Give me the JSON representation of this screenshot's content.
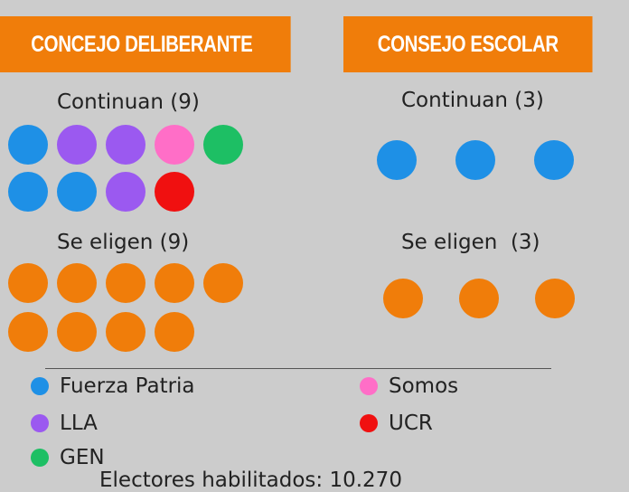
{
  "colors": {
    "orange": "#f07d0a",
    "fuerza_patria": "#1e90e6",
    "lla": "#9b59f0",
    "somos": "#ff6ec7",
    "gen": "#1dbf64",
    "ucr": "#f01010"
  },
  "concejo": {
    "title": "CONCEJO DELIBERANTE",
    "continuan_label": "Continuan (9)",
    "continuan_dots": [
      "fuerza_patria",
      "lla",
      "lla",
      "somos",
      "gen",
      "fuerza_patria",
      "fuerza_patria",
      "lla",
      "ucr"
    ],
    "eligen_label": "Se eligen (9)",
    "eligen_count": 9
  },
  "consejo": {
    "title": "CONSEJO ESCOLAR",
    "continuan_label": "Continuan (3)",
    "continuan_dots": [
      "fuerza_patria",
      "fuerza_patria",
      "fuerza_patria"
    ],
    "eligen_label": "Se eligen  (3)",
    "eligen_count": 3
  },
  "legend": [
    {
      "key": "fuerza_patria",
      "label": "Fuerza Patria"
    },
    {
      "key": "somos",
      "label": "Somos"
    },
    {
      "key": "lla",
      "label": "LLA"
    },
    {
      "key": "ucr",
      "label": "UCR"
    },
    {
      "key": "gen",
      "label": "GEN"
    }
  ],
  "footer_partial": "Electores habilitados: 10.270"
}
